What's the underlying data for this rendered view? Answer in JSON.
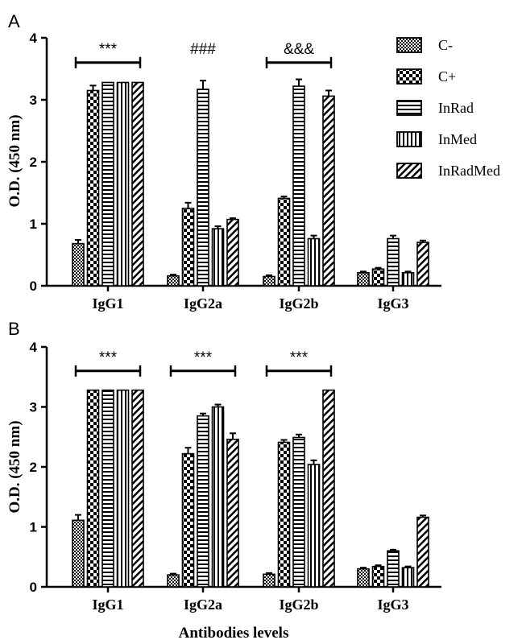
{
  "figure": {
    "xlabel": "Antibodies levels",
    "legend": {
      "placement": "top-right",
      "entries": [
        {
          "name": "C-",
          "pattern": "pat-fine-check"
        },
        {
          "name": "C+",
          "pattern": "pat-coarse-check"
        },
        {
          "name": "InRad",
          "pattern": "pat-horizontal"
        },
        {
          "name": "InMed",
          "pattern": "pat-vertical"
        },
        {
          "name": "InRadMed",
          "pattern": "pat-diagonal"
        }
      ]
    }
  },
  "chart_data": [
    {
      "type": "bar",
      "panel": "A",
      "ylabel": "O.D. (450 nm)",
      "ylim": [
        0,
        4
      ],
      "yticks": [
        0,
        1,
        2,
        3,
        4
      ],
      "categories": [
        "IgG1",
        "IgG2a",
        "IgG2b",
        "IgG3"
      ],
      "series": [
        {
          "name": "C-",
          "values": [
            0.68,
            0.16,
            0.15,
            0.21
          ],
          "errors": [
            0.06,
            0.02,
            0.02,
            0.02
          ]
        },
        {
          "name": "C+",
          "values": [
            3.15,
            1.25,
            1.41,
            0.27
          ],
          "errors": [
            0.08,
            0.09,
            0.03,
            0.02
          ]
        },
        {
          "name": "InRad",
          "values": [
            3.28,
            3.17,
            3.22,
            0.76
          ],
          "errors": [
            0.0,
            0.14,
            0.11,
            0.05
          ]
        },
        {
          "name": "InMed",
          "values": [
            3.28,
            0.92,
            0.76,
            0.21
          ],
          "errors": [
            0.0,
            0.04,
            0.05,
            0.02
          ]
        },
        {
          "name": "InRadMed",
          "values": [
            3.28,
            1.07,
            3.06,
            0.7
          ],
          "errors": [
            0.0,
            0.02,
            0.09,
            0.03
          ]
        }
      ],
      "annotations": [
        {
          "text": "***",
          "category": "IgG1",
          "bracket": true,
          "y": 3.6
        },
        {
          "text": "###",
          "category": "IgG2a",
          "bracket": false,
          "y": 3.6
        },
        {
          "text": "&&&",
          "category": "IgG2b",
          "bracket": true,
          "y": 3.6
        }
      ]
    },
    {
      "type": "bar",
      "panel": "B",
      "ylabel": "O.D. (450 nm)",
      "ylim": [
        0,
        4
      ],
      "yticks": [
        0,
        1,
        2,
        3,
        4
      ],
      "categories": [
        "IgG1",
        "IgG2a",
        "IgG2b",
        "IgG3"
      ],
      "series": [
        {
          "name": "C-",
          "values": [
            1.11,
            0.2,
            0.21,
            0.3
          ],
          "errors": [
            0.09,
            0.02,
            0.02,
            0.02
          ]
        },
        {
          "name": "C+",
          "values": [
            3.28,
            2.22,
            2.41,
            0.34
          ],
          "errors": [
            0.0,
            0.1,
            0.04,
            0.02
          ]
        },
        {
          "name": "InRad",
          "values": [
            3.28,
            2.85,
            2.49,
            0.6
          ],
          "errors": [
            0.0,
            0.04,
            0.05,
            0.02
          ]
        },
        {
          "name": "InMed",
          "values": [
            3.28,
            3.0,
            2.04,
            0.32
          ],
          "errors": [
            0.0,
            0.04,
            0.07,
            0.02
          ]
        },
        {
          "name": "InRadMed",
          "values": [
            3.28,
            2.46,
            3.28,
            1.16
          ],
          "errors": [
            0.0,
            0.1,
            0.0,
            0.03
          ]
        }
      ],
      "annotations": [
        {
          "text": "***",
          "category": "IgG1",
          "bracket": true,
          "y": 3.6
        },
        {
          "text": "***",
          "category": "IgG2a",
          "bracket": true,
          "y": 3.6
        },
        {
          "text": "***",
          "category": "IgG2b",
          "bracket": true,
          "y": 3.6
        }
      ]
    }
  ]
}
